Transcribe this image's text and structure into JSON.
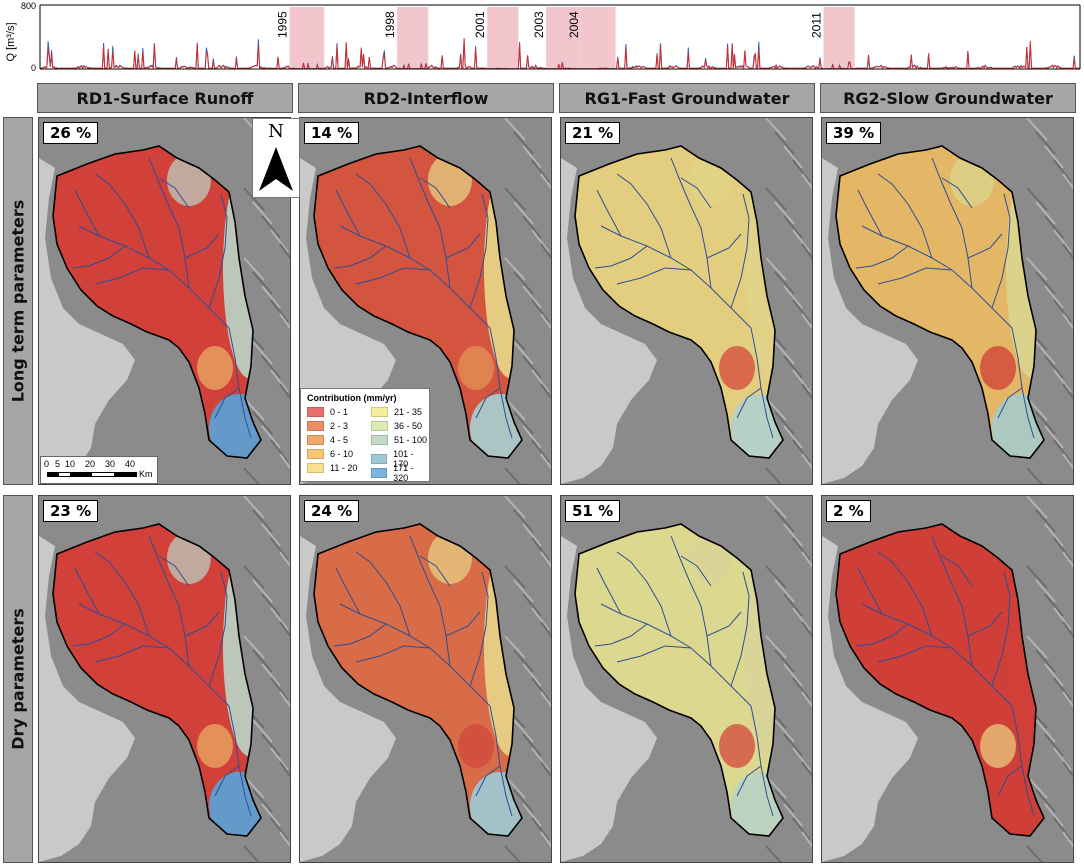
{
  "hydrograph": {
    "ylabel": "Q [m³/s]",
    "y_ticks": [
      "800",
      "0"
    ],
    "ylim": [
      0,
      800
    ],
    "series_colors": {
      "observed": "#2b5fb4",
      "simulated": "#d32b2b"
    },
    "dry_period_color": "#f2c6cc",
    "dry_periods": [
      {
        "label": "1995",
        "start": 1995.2,
        "end": 1996.2
      },
      {
        "label": "1998",
        "start": 1998.3,
        "end": 1999.2
      },
      {
        "label": "2001",
        "start": 2000.9,
        "end": 2001.8
      },
      {
        "label": "2003",
        "start": 2002.6,
        "end": 2003.6
      },
      {
        "label": "2004",
        "start": 2003.6,
        "end": 2004.6
      },
      {
        "label": "2011",
        "start": 2010.6,
        "end": 2011.5
      }
    ],
    "x_range": [
      1988,
      2018
    ]
  },
  "columns": [
    {
      "title": "RD1-Surface Runoff"
    },
    {
      "title": "RD2-Interflow"
    },
    {
      "title": "RG1-Fast Groundwater"
    },
    {
      "title": "RG2-Slow Groundwater"
    }
  ],
  "rows": [
    {
      "title": "Long term parameters",
      "percentages": [
        "26 %",
        "14 %",
        "21 %",
        "39 %"
      ]
    },
    {
      "title": "Dry parameters",
      "percentages": [
        "23 %",
        "24 %",
        "51 %",
        "2 %"
      ]
    }
  ],
  "legend": {
    "title": "Contribution (mm/yr)",
    "classes": [
      {
        "label": "0 - 1",
        "color": "#e8706b"
      },
      {
        "label": "2 - 3",
        "color": "#ec8d68"
      },
      {
        "label": "4 - 5",
        "color": "#f2a86b"
      },
      {
        "label": "6 - 10",
        "color": "#f6c675"
      },
      {
        "label": "11 - 20",
        "color": "#f9e08e"
      },
      {
        "label": "21 - 35",
        "color": "#f3ef9e"
      },
      {
        "label": "36 - 50",
        "color": "#dcebb0"
      },
      {
        "label": "51 - 100",
        "color": "#bfdcc2"
      },
      {
        "label": "101 - 170",
        "color": "#9fc8d6"
      },
      {
        "label": "171 - 320",
        "color": "#7cb3e0"
      }
    ]
  },
  "scalebar": {
    "ticks": [
      "0",
      "5",
      "10",
      "20",
      "30",
      "40"
    ],
    "unit": "Km"
  },
  "north_arrow": {
    "label": "N",
    "icon": "north-arrow-icon"
  },
  "panel_fills": [
    {
      "base": "#d2403a",
      "east": "#b9d6c9",
      "south": "#5e9fd2",
      "accent": "#e7a461"
    },
    {
      "base": "#d4553f",
      "east": "#e7d98a",
      "south": "#a9cbcc",
      "accent": "#e48f55"
    },
    {
      "base": "#e3cd7f",
      "east": "#dfd488",
      "south": "#b3d0c9",
      "accent": "#d4503e"
    },
    {
      "base": "#e4b767",
      "east": "#d9d58f",
      "south": "#a8c9c6",
      "accent": "#d0453b"
    },
    {
      "base": "#d2403a",
      "east": "#b9d6c9",
      "south": "#5e9fd2",
      "accent": "#e7a461"
    },
    {
      "base": "#d96c48",
      "east": "#e8d68a",
      "south": "#9fc6d0",
      "accent": "#cf4a3c"
    },
    {
      "base": "#dcd88f",
      "east": "#d9d49a",
      "south": "#b9d3c3",
      "accent": "#d4503e"
    },
    {
      "base": "#cf3f38",
      "east": "#cf3f38",
      "south": "#cf3f38",
      "accent": "#e7c27a"
    }
  ]
}
